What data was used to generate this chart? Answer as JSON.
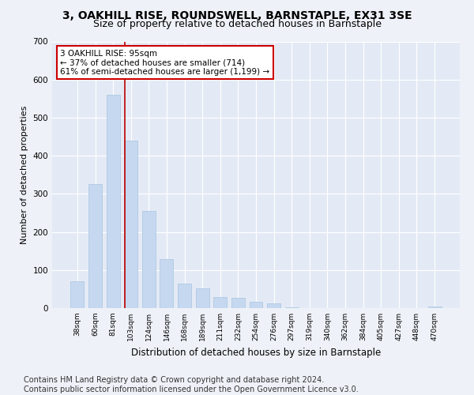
{
  "title1": "3, OAKHILL RISE, ROUNDSWELL, BARNSTAPLE, EX31 3SE",
  "title2": "Size of property relative to detached houses in Barnstaple",
  "xlabel": "Distribution of detached houses by size in Barnstaple",
  "ylabel": "Number of detached properties",
  "categories": [
    "38sqm",
    "60sqm",
    "81sqm",
    "103sqm",
    "124sqm",
    "146sqm",
    "168sqm",
    "189sqm",
    "211sqm",
    "232sqm",
    "254sqm",
    "276sqm",
    "297sqm",
    "319sqm",
    "340sqm",
    "362sqm",
    "384sqm",
    "405sqm",
    "427sqm",
    "448sqm",
    "470sqm"
  ],
  "values": [
    70,
    325,
    560,
    440,
    255,
    128,
    65,
    52,
    30,
    28,
    17,
    13,
    3,
    0,
    0,
    0,
    0,
    0,
    0,
    0,
    5
  ],
  "bar_color": "#c5d8f0",
  "bar_edge_color": "#a8c4e0",
  "vline_x_pos": 2.64,
  "vline_color": "#bb0000",
  "annotation_text": "3 OAKHILL RISE: 95sqm\n← 37% of detached houses are smaller (714)\n61% of semi-detached houses are larger (1,199) →",
  "annotation_box_color": "white",
  "annotation_box_edge_color": "#cc0000",
  "ylim": [
    0,
    700
  ],
  "yticks": [
    0,
    100,
    200,
    300,
    400,
    500,
    600,
    700
  ],
  "footer_text": "Contains HM Land Registry data © Crown copyright and database right 2024.\nContains public sector information licensed under the Open Government Licence v3.0.",
  "bg_color": "#eef2f8",
  "plot_bg_color": "#e4eaf5",
  "grid_color": "#ffffff",
  "title1_fontsize": 10,
  "title2_fontsize": 9,
  "xlabel_fontsize": 8.5,
  "ylabel_fontsize": 8,
  "ann_fontsize": 7.5,
  "footer_fontsize": 7
}
